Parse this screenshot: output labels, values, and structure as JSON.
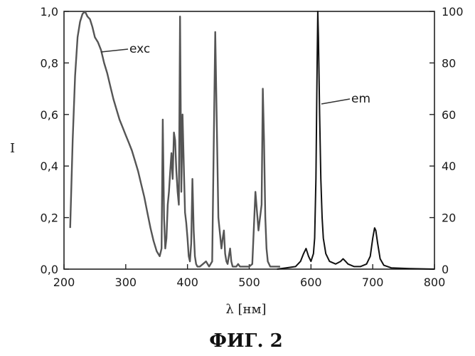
{
  "chart_data": {
    "type": "line",
    "x_axis": {
      "label": "λ [нм]",
      "range": [
        200,
        800
      ],
      "ticks": [
        "200",
        "300",
        "400",
        "500",
        "600",
        "700",
        "800"
      ]
    },
    "y_axis_left": {
      "label": "I",
      "range": [
        0,
        1.0
      ],
      "ticks": [
        "0,0",
        "0,2",
        "0,4",
        "0,6",
        "0,8",
        "1,0"
      ]
    },
    "y_axis_right": {
      "label": "",
      "range": [
        0,
        100
      ],
      "ticks": [
        "0",
        "20",
        "40",
        "60",
        "80",
        "100"
      ]
    },
    "series": [
      {
        "name": "exc",
        "axis": "left",
        "x": [
          210,
          214,
          218,
          222,
          226,
          230,
          234,
          238,
          242,
          246,
          250,
          255,
          260,
          265,
          270,
          275,
          280,
          285,
          290,
          295,
          300,
          305,
          310,
          315,
          320,
          325,
          330,
          335,
          340,
          345,
          350,
          355,
          358,
          360,
          362,
          364,
          366,
          368,
          370,
          372,
          374,
          376,
          378,
          380,
          382,
          384,
          386,
          388,
          390,
          392,
          394,
          396,
          398,
          400,
          402,
          404,
          406,
          408,
          410,
          412,
          414,
          416,
          418,
          420,
          425,
          430,
          435,
          440,
          445,
          450,
          455,
          457,
          459,
          461,
          463,
          465,
          467,
          469,
          471,
          473,
          476,
          479,
          482,
          485,
          490,
          495,
          500,
          505,
          510,
          515,
          520,
          522,
          524,
          526,
          528,
          530,
          532,
          534,
          536,
          538,
          540,
          545,
          550
        ],
        "y": [
          0.16,
          0.5,
          0.75,
          0.9,
          0.96,
          0.99,
          1.0,
          0.98,
          0.97,
          0.94,
          0.9,
          0.88,
          0.85,
          0.8,
          0.76,
          0.71,
          0.66,
          0.62,
          0.58,
          0.55,
          0.52,
          0.49,
          0.46,
          0.42,
          0.38,
          0.33,
          0.28,
          0.22,
          0.16,
          0.11,
          0.07,
          0.05,
          0.08,
          0.58,
          0.2,
          0.08,
          0.12,
          0.25,
          0.3,
          0.38,
          0.45,
          0.35,
          0.53,
          0.5,
          0.38,
          0.3,
          0.25,
          0.98,
          0.3,
          0.6,
          0.4,
          0.22,
          0.18,
          0.12,
          0.05,
          0.03,
          0.1,
          0.35,
          0.15,
          0.05,
          0.02,
          0.01,
          0.01,
          0.01,
          0.02,
          0.03,
          0.01,
          0.03,
          0.92,
          0.2,
          0.08,
          0.12,
          0.15,
          0.06,
          0.03,
          0.02,
          0.05,
          0.08,
          0.03,
          0.01,
          0.01,
          0.01,
          0.02,
          0.01,
          0.01,
          0.01,
          0.01,
          0.02,
          0.3,
          0.15,
          0.25,
          0.7,
          0.5,
          0.2,
          0.08,
          0.03,
          0.02,
          0.01,
          0.01,
          0.01,
          0.01,
          0.01,
          0.01
        ],
        "color": "#555555"
      },
      {
        "name": "em",
        "axis": "right",
        "x": [
          545,
          560,
          575,
          583,
          588,
          592,
          596,
          600,
          604,
          606,
          608,
          610,
          611,
          612,
          614,
          616,
          618,
          620,
          624,
          630,
          640,
          648,
          652,
          656,
          660,
          670,
          680,
          690,
          696,
          700,
          703,
          705,
          708,
          712,
          718,
          730,
          760,
          800
        ],
        "y": [
          0,
          0.5,
          1,
          3,
          6,
          8,
          5,
          3,
          6,
          12,
          35,
          80,
          100,
          90,
          60,
          35,
          20,
          12,
          6,
          3,
          2,
          3,
          4,
          3,
          2,
          1,
          1,
          2,
          5,
          12,
          16,
          15,
          10,
          4,
          1.5,
          0.5,
          0.2,
          0
        ],
        "color": "#111111"
      }
    ],
    "annotations": [
      {
        "text": "exc",
        "series": "exc"
      },
      {
        "text": "em",
        "series": "em"
      }
    ],
    "caption": "ФИГ. 2"
  }
}
